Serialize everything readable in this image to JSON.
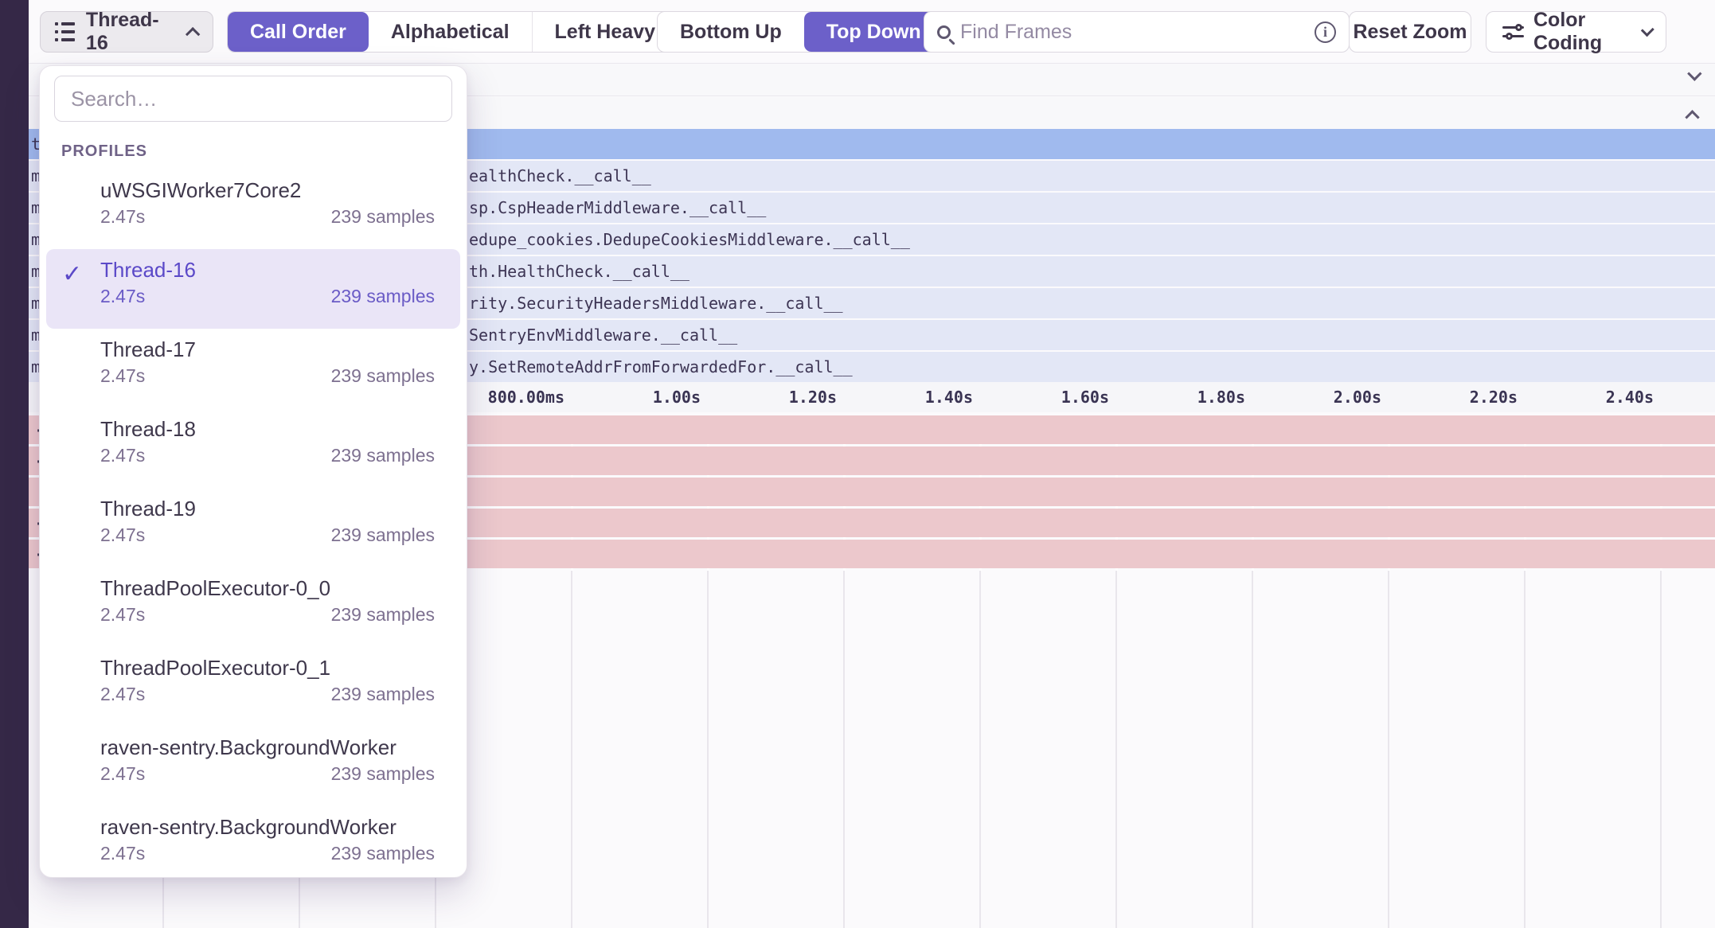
{
  "colors": {
    "accent_purple": "#6C60C9",
    "rail": "#352847",
    "flame_root_blue": "#A0BAEE",
    "flame_row_lavender": "#E3E7F6",
    "busy_row_pink": "#ECC8CC",
    "selected_item_bg": "#EAE5F7"
  },
  "toolbar": {
    "thread_selector": {
      "label": "Thread-16"
    },
    "sort_modes": [
      {
        "label": "Call Order",
        "active": true
      },
      {
        "label": "Alphabetical",
        "active": false
      },
      {
        "label": "Left Heavy",
        "active": false
      }
    ],
    "direction_modes": [
      {
        "label": "Bottom Up",
        "active": false
      },
      {
        "label": "Top Down",
        "active": true
      }
    ],
    "find_frames_placeholder": "Find Frames",
    "info_glyph": "i",
    "reset_zoom_label": "Reset Zoom",
    "color_coding_label": "Color Coding"
  },
  "thread_dropdown": {
    "search_placeholder": "Search…",
    "section_label": "PROFILES",
    "check_glyph": "✓",
    "items": [
      {
        "name": "uWSGIWorker7Core2",
        "duration": "2.47s",
        "samples": "239 samples",
        "selected": false
      },
      {
        "name": "Thread-16",
        "duration": "2.47s",
        "samples": "239 samples",
        "selected": true
      },
      {
        "name": "Thread-17",
        "duration": "2.47s",
        "samples": "239 samples",
        "selected": false
      },
      {
        "name": "Thread-18",
        "duration": "2.47s",
        "samples": "239 samples",
        "selected": false
      },
      {
        "name": "Thread-19",
        "duration": "2.47s",
        "samples": "239 samples",
        "selected": false
      },
      {
        "name": "ThreadPoolExecutor-0_0",
        "duration": "2.47s",
        "samples": "239 samples",
        "selected": false
      },
      {
        "name": "ThreadPoolExecutor-0_1",
        "duration": "2.47s",
        "samples": "239 samples",
        "selected": false
      },
      {
        "name": "raven-sentry.BackgroundWorker",
        "duration": "2.47s",
        "samples": "239 samples",
        "selected": false
      },
      {
        "name": "raven-sentry.BackgroundWorker",
        "duration": "2.47s",
        "samples": "239 samples",
        "selected": false
      }
    ]
  },
  "flamegraph": {
    "root_row": {
      "sliver": "t"
    },
    "rows": [
      {
        "sliver": "m",
        "tail": "ealthCheck.__call__"
      },
      {
        "sliver": "m",
        "tail": "sp.CspHeaderMiddleware.__call__"
      },
      {
        "sliver": "m",
        "tail": "edupe_cookies.DedupeCookiesMiddleware.__call__"
      },
      {
        "sliver": "m",
        "tail": "th.HealthCheck.__call__"
      },
      {
        "sliver": "m",
        "tail": "rity.SecurityHeadersMiddleware.__call__"
      },
      {
        "sliver": "m",
        "tail": "SentryEnvMiddleware.__call__"
      },
      {
        "sliver": "m",
        "tail": "y.SetRemoteAddrFromForwardedFor.__call__"
      }
    ],
    "axis_ticks": [
      {
        "label": "800.00ms",
        "seconds": 0.8
      },
      {
        "label": "1.00s",
        "seconds": 1.0
      },
      {
        "label": "1.20s",
        "seconds": 1.2
      },
      {
        "label": "1.40s",
        "seconds": 1.4
      },
      {
        "label": "1.60s",
        "seconds": 1.6
      },
      {
        "label": "1.80s",
        "seconds": 1.8
      },
      {
        "label": "2.00s",
        "seconds": 2.0
      },
      {
        "label": "2.20s",
        "seconds": 2.2
      },
      {
        "label": "2.40s",
        "seconds": 2.4
      }
    ],
    "gridline_seconds": [
      0.2,
      0.4,
      0.6,
      0.8,
      1.0,
      1.2,
      1.4,
      1.6,
      1.8,
      2.0,
      2.2,
      2.4
    ],
    "busy_rows": [
      {
        "mark": "-"
      },
      {
        "mark": "-"
      },
      {
        "mark": "|"
      },
      {
        "mark": "-"
      },
      {
        "mark": "-"
      }
    ]
  }
}
